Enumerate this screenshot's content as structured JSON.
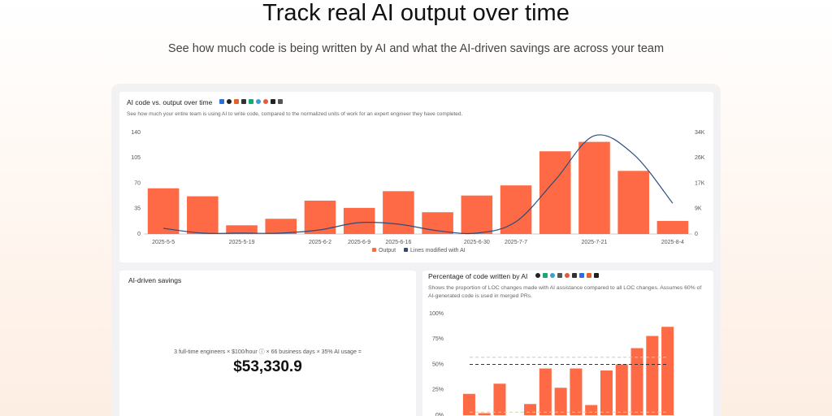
{
  "header": {
    "title": "Track real AI output over time",
    "subtitle": "See how much code is being written by AI and what the AI-driven savings are across your team"
  },
  "chart_data": [
    {
      "type": "combo",
      "title": "AI code vs. output over time",
      "description": "See how much your entire team is using AI to write code, compared to the normalized units of work for an expert engineer they have completed.",
      "categories": [
        "2025-5-5",
        null,
        "2025-5-19",
        null,
        "2025-6-2",
        "2025-6-9",
        "2025-6-16",
        null,
        "2025-6-30",
        "2025-7-7",
        null,
        "2025-7-21",
        null,
        "2025-8-4"
      ],
      "series": [
        {
          "name": "Output",
          "type": "bar",
          "color": "#fe6a45",
          "values": [
            63,
            52,
            12,
            21,
            46,
            36,
            59,
            30,
            53,
            67,
            114,
            127,
            87,
            18
          ]
        },
        {
          "name": "Lines modified with AI",
          "type": "line",
          "axis": "y2",
          "color": "#2b4c7e",
          "values": [
            1900,
            300,
            300,
            300,
            1400,
            3800,
            3300,
            1100,
            300,
            4100,
            18000,
            32900,
            26700,
            10300
          ]
        }
      ],
      "ylim": [
        0,
        140
      ],
      "yticks": [
        0,
        35,
        70,
        105,
        140
      ],
      "y2lim": [
        0,
        34000
      ],
      "y2ticks": [
        0,
        {
          "value": 8500,
          "label": "9K"
        },
        {
          "value": 17000,
          "label": "17K"
        },
        {
          "value": 25500,
          "label": "26K"
        },
        {
          "value": 34000,
          "label": "34K"
        }
      ],
      "legend": "bottom"
    },
    {
      "type": "bar",
      "title": "Percentage of code written by AI",
      "description": "Shows the proportion of LOC changes made with AI assistance compared to all LOC changes. Assumes 60% of AI-generated code is used in merged PRs.",
      "color": "#fe6a45",
      "values": [
        21,
        2,
        31,
        0,
        11,
        46,
        27,
        46,
        10,
        44,
        50,
        66,
        78,
        87
      ],
      "ylim": [
        0,
        100
      ],
      "yticks": [
        {
          "value": 0,
          "label": "0%"
        },
        {
          "value": 25,
          "label": "25%"
        },
        {
          "value": 50,
          "label": "50%"
        },
        {
          "value": 75,
          "label": "75%"
        },
        {
          "value": 100,
          "label": "100%"
        }
      ],
      "reference_lines": [
        {
          "value": 57,
          "color": "#a8dcc4"
        },
        {
          "value": 50,
          "color": "#333333"
        },
        {
          "value": 3,
          "color": "#f2cf55"
        }
      ]
    }
  ],
  "savings": {
    "title": "AI-driven savings",
    "formula": "3 full-time engineers × $100/hour ⓘ × 66 business days × 35% AI usage =",
    "total": "$53,330.9"
  }
}
